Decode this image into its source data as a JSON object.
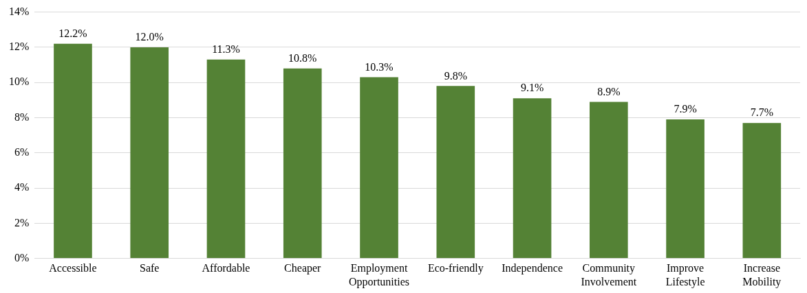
{
  "chart_data": {
    "type": "bar",
    "categories": [
      "Accessible",
      "Safe",
      "Affordable",
      "Cheaper",
      "Employment Opportunities",
      "Eco-friendly",
      "Independence",
      "Community Involvement",
      "Improve Lifestyle",
      "Increase Mobility"
    ],
    "values": [
      12.2,
      12.0,
      11.3,
      10.8,
      10.3,
      9.8,
      9.1,
      8.9,
      7.9,
      7.7
    ],
    "value_labels": [
      "12.2%",
      "12.0%",
      "11.3%",
      "10.8%",
      "10.3%",
      "9.8%",
      "9.1%",
      "8.9%",
      "7.9%",
      "7.7%"
    ],
    "color": "#548235",
    "ylim": [
      0,
      14
    ],
    "yticks": [
      {
        "value": 0,
        "label": "0%"
      },
      {
        "value": 2,
        "label": "2%"
      },
      {
        "value": 4,
        "label": "4%"
      },
      {
        "value": 6,
        "label": "6%"
      },
      {
        "value": 8,
        "label": "8%"
      },
      {
        "value": 10,
        "label": "10%"
      },
      {
        "value": 12,
        "label": "12%"
      },
      {
        "value": 14,
        "label": "14%"
      }
    ],
    "grid": "y"
  }
}
